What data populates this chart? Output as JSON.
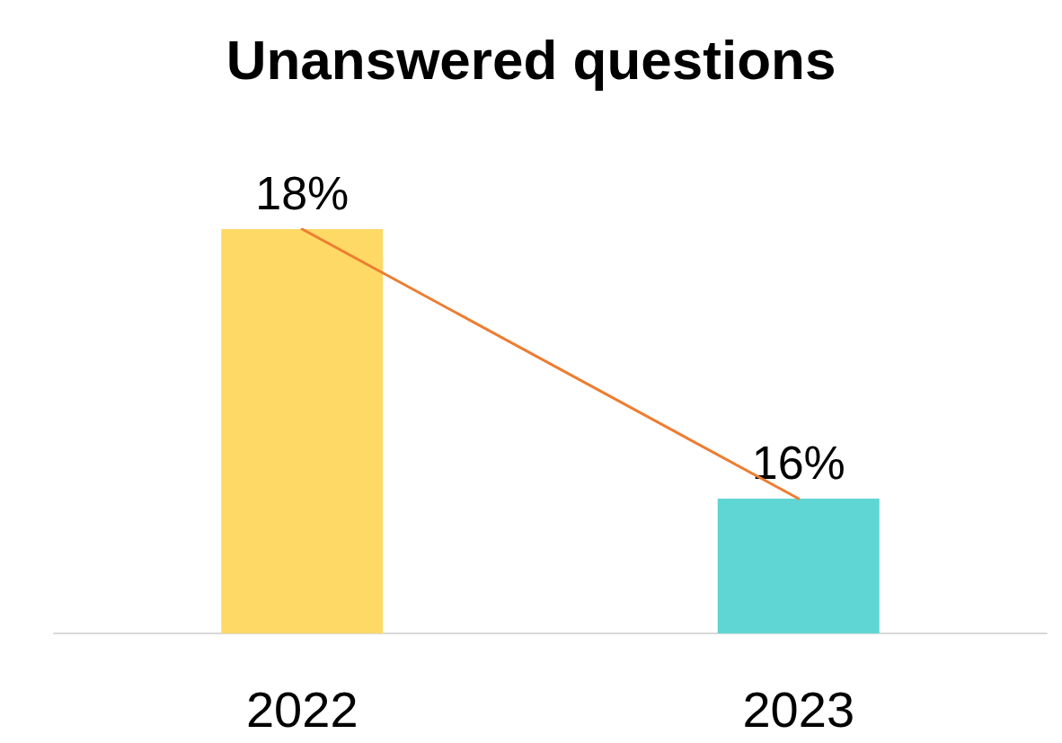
{
  "chart_data": {
    "type": "bar",
    "title": "Unanswered questions",
    "categories": [
      "2022",
      "2023"
    ],
    "series": [
      {
        "values": [
          18,
          16
        ],
        "colors": [
          "#fed966",
          "#5fd6d3"
        ],
        "value_labels": [
          "18%",
          "16%"
        ]
      },
      {
        "type": "line",
        "values": [
          18,
          16
        ],
        "color": "#ed7d31",
        "marker": "none"
      }
    ],
    "ylim": [
      15,
      18
    ],
    "tick_labels": "x",
    "grid": false
  }
}
